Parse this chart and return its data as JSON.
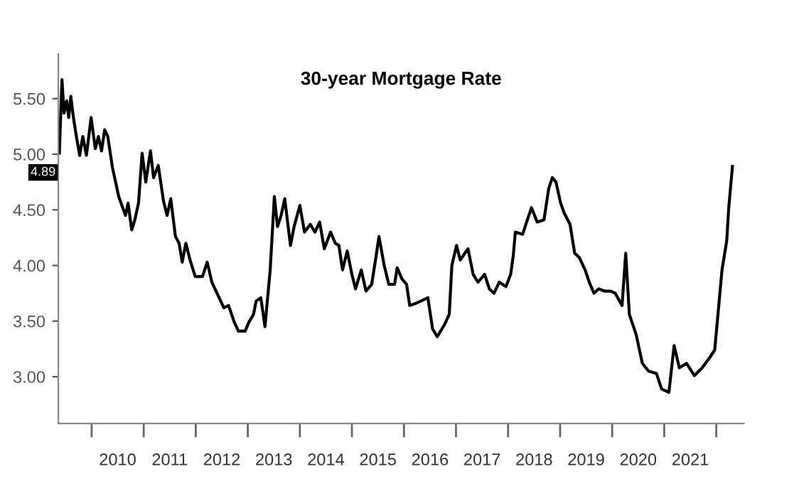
{
  "chart_data": {
    "type": "line",
    "title": "30-year Mortgage Rate",
    "series": [
      {
        "color": "#000000",
        "x": [
          2009.38,
          2009.43,
          2009.47,
          2009.52,
          2009.56,
          2009.6,
          2009.65,
          2009.7,
          2009.77,
          2009.83,
          2009.9,
          2009.99,
          2010.07,
          2010.13,
          2010.19,
          2010.25,
          2010.31,
          2010.4,
          2010.52,
          2010.65,
          2010.7,
          2010.77,
          2010.83,
          2010.9,
          2010.97,
          2011.04,
          2011.13,
          2011.19,
          2011.28,
          2011.38,
          2011.45,
          2011.52,
          2011.61,
          2011.68,
          2011.74,
          2011.81,
          2011.89,
          2011.99,
          2012.13,
          2012.22,
          2012.31,
          2012.43,
          2012.54,
          2012.63,
          2012.74,
          2012.82,
          2012.95,
          2013.02,
          2013.11,
          2013.16,
          2013.25,
          2013.33,
          2013.43,
          2013.51,
          2013.57,
          2013.64,
          2013.71,
          2013.82,
          2013.89,
          2014.0,
          2014.09,
          2014.2,
          2014.29,
          2014.38,
          2014.47,
          2014.59,
          2014.68,
          2014.75,
          2014.82,
          2014.91,
          2015.0,
          2015.07,
          2015.18,
          2015.27,
          2015.38,
          2015.46,
          2015.52,
          2015.62,
          2015.71,
          2015.82,
          2015.87,
          2015.96,
          2016.05,
          2016.11,
          2016.23,
          2016.46,
          2016.55,
          2016.64,
          2016.78,
          2016.87,
          2016.92,
          2017.01,
          2017.08,
          2017.14,
          2017.23,
          2017.33,
          2017.42,
          2017.55,
          2017.64,
          2017.73,
          2017.83,
          2017.96,
          2018.05,
          2018.1,
          2018.14,
          2018.28,
          2018.37,
          2018.45,
          2018.56,
          2018.69,
          2018.78,
          2018.85,
          2018.92,
          2019.01,
          2019.08,
          2019.19,
          2019.28,
          2019.37,
          2019.48,
          2019.56,
          2019.65,
          2019.74,
          2019.85,
          2019.97,
          2020.06,
          2020.19,
          2020.26,
          2020.33,
          2020.46,
          2020.58,
          2020.7,
          2020.85,
          2020.95,
          2021.09,
          2021.19,
          2021.29,
          2021.43,
          2021.58,
          2021.73,
          2021.87,
          2021.97,
          2022.11,
          2022.2,
          2022.24,
          2022.31
        ],
        "values": [
          5.01,
          5.67,
          5.37,
          5.48,
          5.33,
          5.52,
          5.33,
          5.18,
          4.99,
          5.16,
          4.99,
          5.33,
          5.05,
          5.16,
          5.03,
          5.22,
          5.16,
          4.88,
          4.62,
          4.45,
          4.56,
          4.32,
          4.41,
          4.56,
          5.01,
          4.75,
          5.03,
          4.79,
          4.9,
          4.58,
          4.45,
          4.6,
          4.26,
          4.2,
          4.03,
          4.2,
          4.05,
          3.9,
          3.9,
          4.03,
          3.85,
          3.73,
          3.62,
          3.64,
          3.49,
          3.41,
          3.41,
          3.49,
          3.56,
          3.68,
          3.71,
          3.45,
          3.96,
          4.62,
          4.35,
          4.45,
          4.6,
          4.18,
          4.35,
          4.54,
          4.3,
          4.37,
          4.3,
          4.39,
          4.15,
          4.3,
          4.2,
          4.18,
          3.96,
          4.13,
          3.92,
          3.79,
          3.96,
          3.77,
          3.83,
          4.07,
          4.26,
          4.0,
          3.83,
          3.83,
          3.98,
          3.88,
          3.83,
          3.64,
          3.66,
          3.71,
          3.43,
          3.36,
          3.47,
          3.56,
          4.0,
          4.18,
          4.05,
          4.09,
          4.15,
          3.92,
          3.85,
          3.92,
          3.79,
          3.75,
          3.85,
          3.81,
          3.92,
          4.09,
          4.3,
          4.28,
          4.41,
          4.52,
          4.39,
          4.41,
          4.69,
          4.79,
          4.75,
          4.56,
          4.47,
          4.37,
          4.11,
          4.07,
          3.96,
          3.85,
          3.75,
          3.79,
          3.77,
          3.77,
          3.75,
          3.64,
          4.11,
          3.56,
          3.38,
          3.12,
          3.05,
          3.03,
          2.89,
          2.86,
          3.28,
          3.08,
          3.12,
          3.01,
          3.08,
          3.17,
          3.24,
          3.96,
          4.22,
          4.52,
          4.89
        ]
      }
    ],
    "annotations": [
      "4.89"
    ],
    "xlim": [
      2009.36,
      2022.53
    ],
    "xticks": [
      {
        "value": 2010,
        "label": null
      },
      {
        "value": 2010.5,
        "label": "2010"
      },
      {
        "value": 2011,
        "label": null
      },
      {
        "value": 2011.5,
        "label": "2011"
      },
      {
        "value": 2012,
        "label": null
      },
      {
        "value": 2012.5,
        "label": "2012"
      },
      {
        "value": 2013,
        "label": null
      },
      {
        "value": 2013.5,
        "label": "2013"
      },
      {
        "value": 2014,
        "label": null
      },
      {
        "value": 2014.5,
        "label": "2014"
      },
      {
        "value": 2015,
        "label": null
      },
      {
        "value": 2015.5,
        "label": "2015"
      },
      {
        "value": 2016,
        "label": null
      },
      {
        "value": 2016.5,
        "label": "2016"
      },
      {
        "value": 2017,
        "label": null
      },
      {
        "value": 2017.5,
        "label": "2017"
      },
      {
        "value": 2018,
        "label": null
      },
      {
        "value": 2018.5,
        "label": "2018"
      },
      {
        "value": 2019,
        "label": null
      },
      {
        "value": 2019.5,
        "label": "2019"
      },
      {
        "value": 2020,
        "label": null
      },
      {
        "value": 2020.5,
        "label": "2020"
      },
      {
        "value": 2021,
        "label": null
      },
      {
        "value": 2021.5,
        "label": "2021"
      },
      {
        "value": 2022,
        "label": null
      }
    ],
    "ylim": [
      2.58,
      5.9
    ],
    "yticks": [
      {
        "value": 3,
        "label": "3.00"
      },
      {
        "value": 3.5,
        "label": "3.50"
      },
      {
        "value": 4,
        "label": "4.00"
      },
      {
        "value": 4.5,
        "label": "4.50"
      },
      {
        "value": 5,
        "label": "5.00"
      },
      {
        "value": 5.5,
        "label": "5.50"
      }
    ],
    "grid": false,
    "legend": false,
    "marker": "none",
    "line_style": "solid"
  }
}
